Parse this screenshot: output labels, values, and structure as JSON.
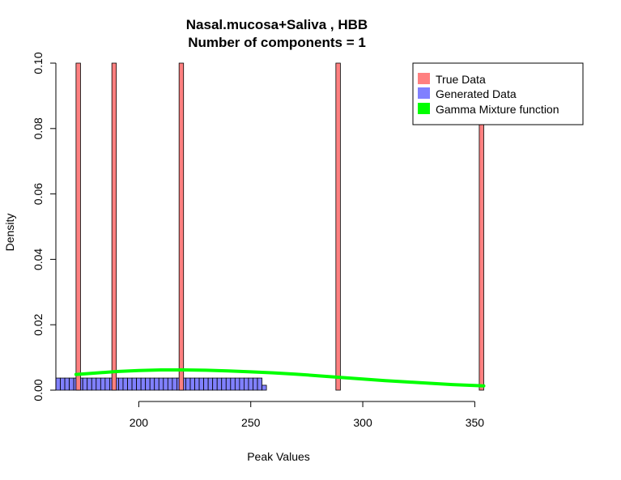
{
  "chart_data": {
    "type": "bar",
    "title": "Nasal.mucosa+Saliva , HBB",
    "subtitle": "Number of components =  1",
    "xlabel": "Peak Values",
    "ylabel": "Density",
    "xlim": [
      163,
      356
    ],
    "ylim": [
      0,
      0.1
    ],
    "xticks": [
      200,
      250,
      300,
      350
    ],
    "yticks": [
      0.0,
      0.02,
      0.04,
      0.06,
      0.08,
      0.1
    ],
    "ytick_labels": [
      "0.00",
      "0.02",
      "0.04",
      "0.06",
      "0.08",
      "0.10"
    ],
    "legend": {
      "position": "top-right",
      "entries": [
        {
          "label": "True Data",
          "color": "#FF8080"
        },
        {
          "label": "Generated Data",
          "color": "#8080FF"
        },
        {
          "label": "Gamma Mixture function",
          "color": "#00FF00"
        }
      ]
    },
    "series": [
      {
        "name": "True Data",
        "kind": "histogram",
        "color": "#FF8080",
        "bin_width": 2,
        "bins": [
          {
            "start": 172,
            "density": 0.1
          },
          {
            "start": 188,
            "density": 0.1
          },
          {
            "start": 218,
            "density": 0.1
          },
          {
            "start": 288,
            "density": 0.1
          },
          {
            "start": 352,
            "density": 0.1
          }
        ]
      },
      {
        "name": "Generated Data",
        "kind": "histogram",
        "color": "#8080FF",
        "bin_start": 163,
        "bin_width": 2,
        "bin_densities": [
          0.0037,
          0.0037,
          0.0037,
          0.0037,
          0.0037,
          0.0037,
          0.0037,
          0.0037,
          0.0037,
          0.0037,
          0.0037,
          0.0037,
          0.0037,
          0.0037,
          0.0037,
          0.0037,
          0.0037,
          0.0037,
          0.0037,
          0.0037,
          0.0037,
          0.0037,
          0.0037,
          0.0037,
          0.0037,
          0.0037,
          0.0037,
          0.0037,
          0.0037,
          0.0037,
          0.0037,
          0.0037,
          0.0037,
          0.0037,
          0.0037,
          0.0037,
          0.0037,
          0.0037,
          0.0037,
          0.0037,
          0.0037,
          0.0037,
          0.0037,
          0.0037,
          0.0037,
          0.0037,
          0.0015
        ]
      },
      {
        "name": "Gamma Mixture function",
        "kind": "line",
        "color": "#00FF00",
        "x": [
          172,
          180,
          190,
          200,
          210,
          220,
          230,
          240,
          250,
          260,
          270,
          280,
          290,
          300,
          310,
          320,
          330,
          340,
          350,
          354
        ],
        "y": [
          0.0048,
          0.0052,
          0.0057,
          0.006,
          0.0062,
          0.0062,
          0.0061,
          0.0059,
          0.0056,
          0.0053,
          0.0049,
          0.0044,
          0.0039,
          0.0034,
          0.0029,
          0.0025,
          0.0021,
          0.0017,
          0.0014,
          0.0013
        ]
      }
    ]
  }
}
